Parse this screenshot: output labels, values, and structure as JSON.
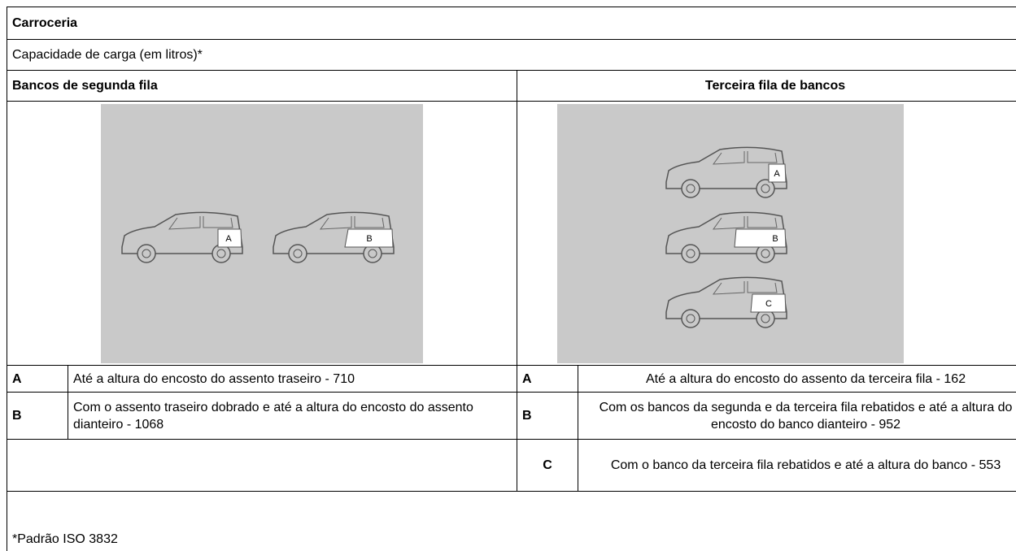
{
  "header": {
    "title": "Carroceria",
    "subtitle": "Capacidade de carga (em litros)*"
  },
  "table": {
    "columns": [
      "Bancos de segunda fila",
      "Terceira fila de bancos"
    ],
    "left_rows": [
      [
        "A",
        "Até a altura do encosto do assento traseiro - 710"
      ],
      [
        "B",
        "Com o assento traseiro dobrado e até a altura do encosto do assento dianteiro - 1068"
      ]
    ],
    "right_rows": [
      [
        "A",
        "Até a altura do encosto do assento da terceira fila - 162"
      ],
      [
        "B",
        "Com os bancos da segunda e da terceira fila rebatidos e até a altura do encosto do banco dianteiro - 952"
      ],
      [
        "C",
        "Com o banco da terceira fila rebatidos e até a altura do banco - 553"
      ]
    ]
  },
  "image_labels": {
    "left": [
      "A",
      "B"
    ],
    "right": [
      "A",
      "B",
      "C"
    ]
  },
  "footnote": "*Padrão ISO 3832"
}
